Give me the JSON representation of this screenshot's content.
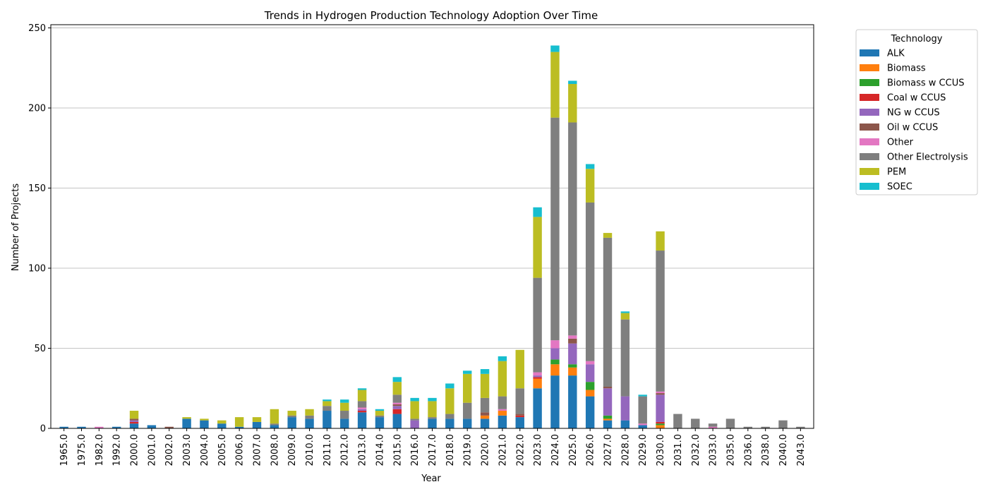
{
  "chart_data": {
    "type": "bar",
    "stacked": true,
    "title": "Trends in Hydrogen Production Technology Adoption Over Time",
    "xlabel": "Year",
    "ylabel": "Number of Projects",
    "ylim": [
      0,
      252
    ],
    "yticks": [
      0,
      50,
      100,
      150,
      200,
      250
    ],
    "grid": "y",
    "legend": {
      "title": "Technology",
      "placement": "outside-top-right"
    },
    "categories": [
      "1965.0",
      "1975.0",
      "1982.0",
      "1992.0",
      "2000.0",
      "2001.0",
      "2002.0",
      "2003.0",
      "2004.0",
      "2005.0",
      "2006.0",
      "2007.0",
      "2008.0",
      "2009.0",
      "2010.0",
      "2011.0",
      "2012.0",
      "2013.0",
      "2014.0",
      "2015.0",
      "2016.0",
      "2017.0",
      "2018.0",
      "2019.0",
      "2020.0",
      "2021.0",
      "2022.0",
      "2023.0",
      "2024.0",
      "2025.0",
      "2026.0",
      "2027.0",
      "2028.0",
      "2029.0",
      "2030.0",
      "2031.0",
      "2032.0",
      "2033.0",
      "2035.0",
      "2036.0",
      "2038.0",
      "2040.0",
      "2043.0"
    ],
    "series": [
      {
        "name": "ALK",
        "color": "#1f77b4",
        "values": [
          1,
          1,
          0,
          1,
          3,
          2,
          0,
          6,
          5,
          3,
          1,
          4,
          2,
          7,
          6,
          11,
          6,
          10,
          7,
          9,
          0,
          6,
          6,
          6,
          6,
          8,
          7,
          25,
          33,
          33,
          20,
          5,
          5,
          2,
          0,
          0,
          0,
          0,
          0,
          0,
          0,
          0,
          0
        ]
      },
      {
        "name": "Biomass",
        "color": "#ff7f0e",
        "values": [
          0,
          0,
          0,
          0,
          0,
          0,
          0,
          0,
          0,
          0,
          0,
          0,
          0,
          0,
          0,
          0,
          0,
          0,
          0,
          0,
          0,
          0,
          0,
          0,
          2,
          3,
          0,
          6,
          7,
          5,
          4,
          1,
          0,
          0,
          2,
          0,
          0,
          0,
          0,
          0,
          0,
          0,
          0
        ]
      },
      {
        "name": "Biomass w CCUS",
        "color": "#2ca02c",
        "values": [
          0,
          0,
          0,
          0,
          0,
          0,
          0,
          0,
          0,
          0,
          0,
          0,
          0,
          0,
          0,
          0,
          0,
          0,
          0,
          0,
          0,
          0,
          0,
          0,
          0,
          0,
          0,
          0,
          3,
          2,
          5,
          2,
          0,
          0,
          1,
          0,
          0,
          0,
          0,
          0,
          0,
          0,
          0
        ]
      },
      {
        "name": "Coal w CCUS",
        "color": "#d62728",
        "values": [
          0,
          0,
          0,
          0,
          1,
          0,
          0,
          0,
          0,
          0,
          0,
          0,
          0,
          0,
          0,
          0,
          0,
          1,
          0,
          3,
          0,
          0,
          0,
          0,
          0,
          0,
          1,
          1,
          0,
          0,
          0,
          0,
          0,
          0,
          1,
          0,
          0,
          0,
          0,
          0,
          0,
          0,
          0
        ]
      },
      {
        "name": "NG w CCUS",
        "color": "#9467bd",
        "values": [
          0,
          0,
          0,
          0,
          1,
          0,
          0,
          0,
          0,
          0,
          0,
          0,
          0,
          0,
          0,
          0,
          0,
          1,
          0,
          2,
          5,
          0,
          0,
          0,
          0,
          0,
          0,
          1,
          7,
          13,
          11,
          17,
          15,
          0,
          17,
          0,
          0,
          0,
          0,
          0,
          0,
          0,
          0
        ]
      },
      {
        "name": "Oil w CCUS",
        "color": "#8c564b",
        "values": [
          0,
          0,
          0,
          0,
          1,
          0,
          1,
          0,
          0,
          0,
          0,
          0,
          0,
          0,
          0,
          0,
          0,
          0,
          0,
          1,
          0,
          0,
          0,
          0,
          2,
          0,
          1,
          0,
          0,
          3,
          0,
          1,
          0,
          0,
          1,
          0,
          0,
          0,
          0,
          0,
          0,
          0,
          0
        ]
      },
      {
        "name": "Other",
        "color": "#e377c2",
        "values": [
          0,
          0,
          1,
          0,
          0,
          0,
          0,
          0,
          0,
          0,
          0,
          0,
          0,
          0,
          0,
          0,
          0,
          1,
          0,
          1,
          0,
          0,
          0,
          0,
          0,
          1,
          0,
          2,
          5,
          2,
          2,
          0,
          0,
          1,
          1,
          0,
          0,
          1,
          0,
          0,
          0,
          0,
          0
        ]
      },
      {
        "name": "Other Electrolysis",
        "color": "#7f7f7f",
        "values": [
          0,
          0,
          0,
          0,
          0,
          0,
          0,
          0,
          0,
          0,
          0,
          0,
          1,
          1,
          2,
          3,
          5,
          4,
          1,
          5,
          1,
          1,
          3,
          10,
          9,
          8,
          16,
          59,
          139,
          133,
          99,
          93,
          48,
          17,
          88,
          9,
          6,
          2,
          6,
          1,
          1,
          5,
          1
        ]
      },
      {
        "name": "PEM",
        "color": "#bcbd22",
        "values": [
          0,
          0,
          0,
          0,
          5,
          0,
          0,
          1,
          1,
          2,
          6,
          3,
          9,
          3,
          4,
          3,
          5,
          7,
          3,
          8,
          11,
          10,
          16,
          18,
          15,
          22,
          24,
          38,
          41,
          24,
          21,
          3,
          4,
          0,
          12,
          0,
          0,
          0,
          0,
          0,
          0,
          0,
          0
        ]
      },
      {
        "name": "SOEC",
        "color": "#17becf",
        "values": [
          0,
          0,
          0,
          0,
          0,
          0,
          0,
          0,
          0,
          0,
          0,
          0,
          0,
          0,
          0,
          1,
          2,
          1,
          1,
          3,
          2,
          2,
          3,
          2,
          3,
          3,
          0,
          6,
          4,
          2,
          3,
          0,
          1,
          1,
          0,
          0,
          0,
          0,
          0,
          0,
          0,
          0,
          0
        ]
      }
    ]
  }
}
